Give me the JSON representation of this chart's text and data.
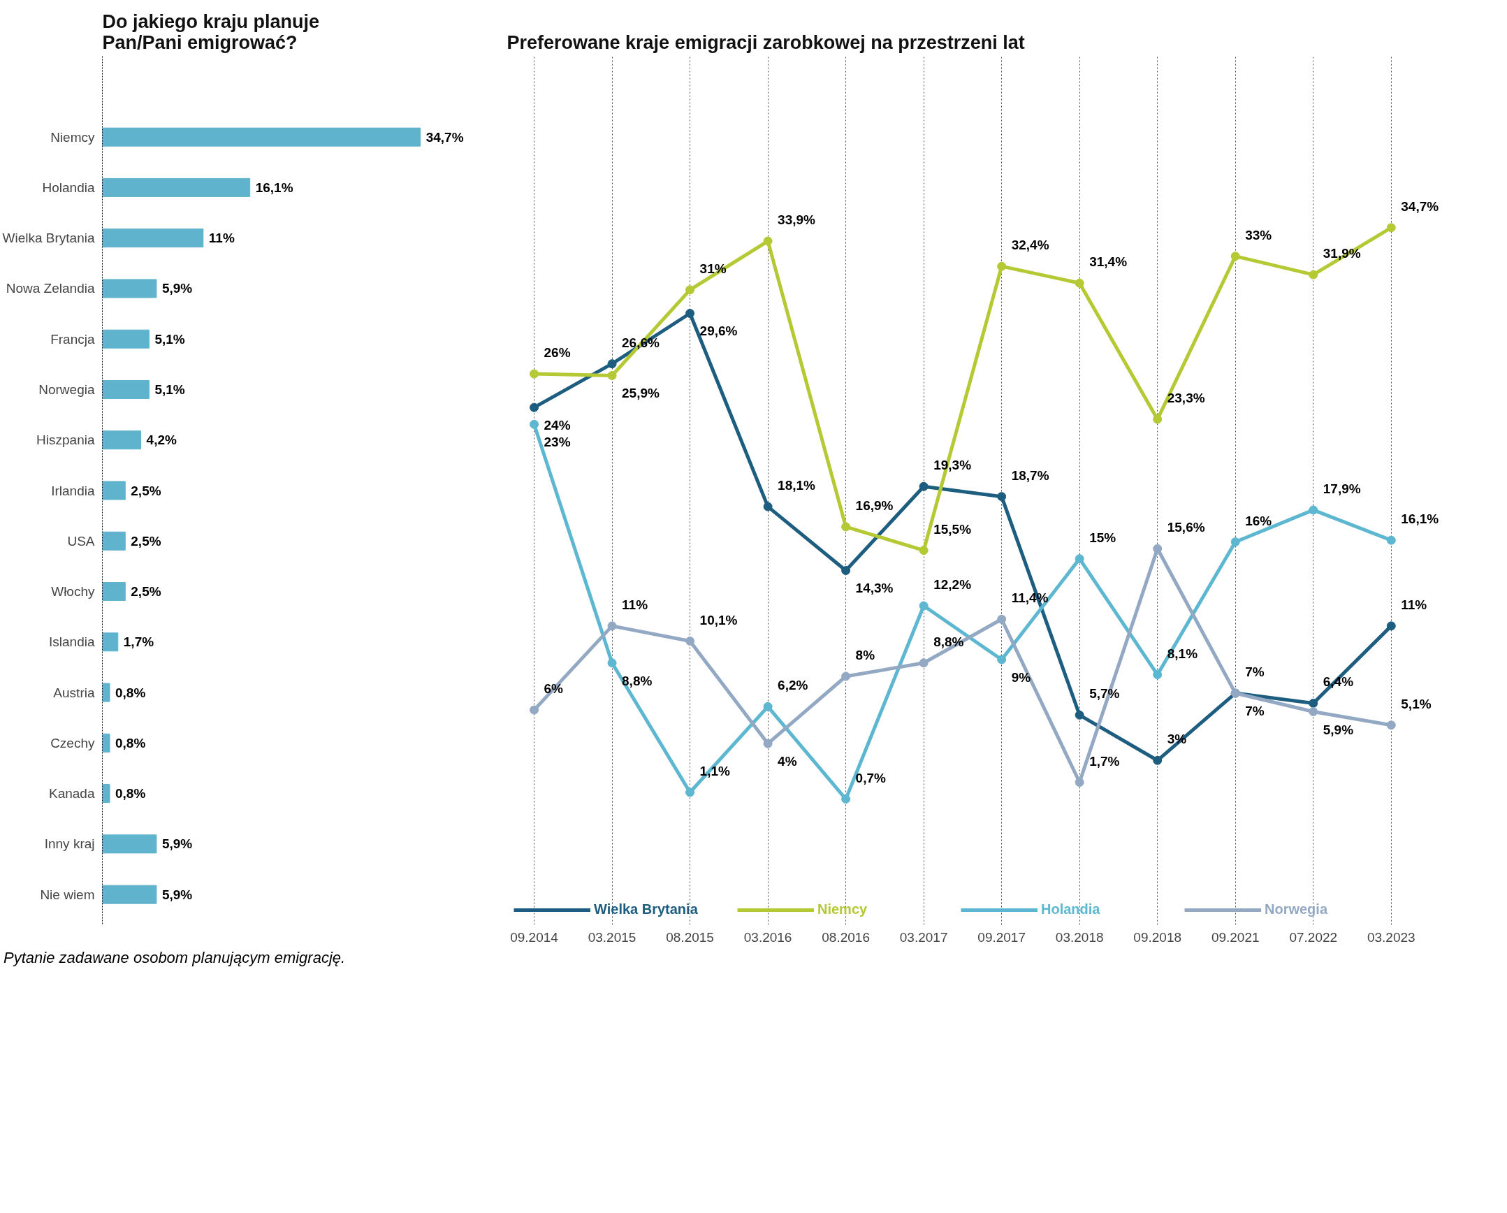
{
  "chart_data": [
    {
      "type": "bar",
      "orientation": "horizontal",
      "title": "Do jakiego kraju planuje Pan/Pani emigrować?",
      "categories": [
        "Niemcy",
        "Holandia",
        "Wielka Brytania",
        "Nowa Zelandia",
        "Francja",
        "Norwegia",
        "Hiszpania",
        "Irlandia",
        "USA",
        "Włochy",
        "Islandia",
        "Austria",
        "Czechy",
        "Kanada",
        "Inny kraj",
        "Nie wiem"
      ],
      "values": [
        34.7,
        16.1,
        11,
        5.9,
        5.1,
        5.1,
        4.2,
        2.5,
        2.5,
        2.5,
        1.7,
        0.8,
        0.8,
        0.8,
        5.9,
        5.9
      ],
      "value_labels": [
        "34,7%",
        "16,1%",
        "11%",
        "5,9%",
        "5,1%",
        "5,1%",
        "4,2%",
        "2,5%",
        "2,5%",
        "2,5%",
        "1,7%",
        "0,8%",
        "0,8%",
        "0,8%",
        "5,9%",
        "5,9%"
      ],
      "color": "#5fb3cc",
      "tick_labels": "y",
      "annotations": [
        "Pytanie zadawane osobom planującym emigrację."
      ]
    },
    {
      "type": "line",
      "title": "Preferowane kraje emigracji zarobkowej na przestrzeni lat",
      "categories": [
        "09.2014",
        "03.2015",
        "08.2015",
        "03.2016",
        "08.2016",
        "03.2017",
        "09.2017",
        "03.2018",
        "09.2018",
        "09.2021",
        "07.2022",
        "03.2023"
      ],
      "marker": "circle",
      "grid": "x",
      "legend": "bottom",
      "tick_labels": "x",
      "series": [
        {
          "name": "Wielka Brytania",
          "color": "#1d5d80",
          "values": [
            24,
            26.6,
            29.6,
            18.1,
            14.3,
            19.3,
            18.7,
            5.7,
            3,
            7,
            6.4,
            11
          ],
          "value_labels": [
            "24%",
            "26,6%",
            "29,6%",
            "18,1%",
            "14,3%",
            "19,3%",
            "18,7%",
            "5,7%",
            "3%",
            "7%",
            "6,4%",
            "11%"
          ]
        },
        {
          "name": "Niemcy",
          "color": "#b5c934",
          "values": [
            26,
            25.9,
            31,
            33.9,
            16.9,
            15.5,
            32.4,
            31.4,
            23.3,
            33,
            31.9,
            34.7
          ],
          "value_labels": [
            "26%",
            "25,9%",
            "31%",
            "33,9%",
            "16,9%",
            "15,5%",
            "32,4%",
            "31,4%",
            "23,3%",
            "33%",
            "31,9%",
            "34,7%"
          ]
        },
        {
          "name": "Holandia",
          "color": "#5db7d0",
          "values": [
            23,
            8.8,
            1.1,
            6.2,
            0.7,
            12.2,
            9,
            15,
            8.1,
            16,
            17.9,
            16.1
          ],
          "value_labels": [
            "23%",
            "8,8%",
            "1,1%",
            "6,2%",
            "0,7%",
            "12,2%",
            "9%",
            "15%",
            "8,1%",
            "16%",
            "17,9%",
            "16,1%"
          ]
        },
        {
          "name": "Norwegia",
          "color": "#93a8c2",
          "values": [
            6,
            11,
            10.1,
            4,
            8,
            8.8,
            11.4,
            1.7,
            15.6,
            7,
            5.9,
            5.1
          ],
          "value_labels": [
            "6%",
            "11%",
            "10,1%",
            "4%",
            "8%",
            "8,8%",
            "11,4%",
            "1,7%",
            "15,6%",
            "7%",
            "5,9%",
            "5,1%"
          ]
        }
      ]
    }
  ]
}
